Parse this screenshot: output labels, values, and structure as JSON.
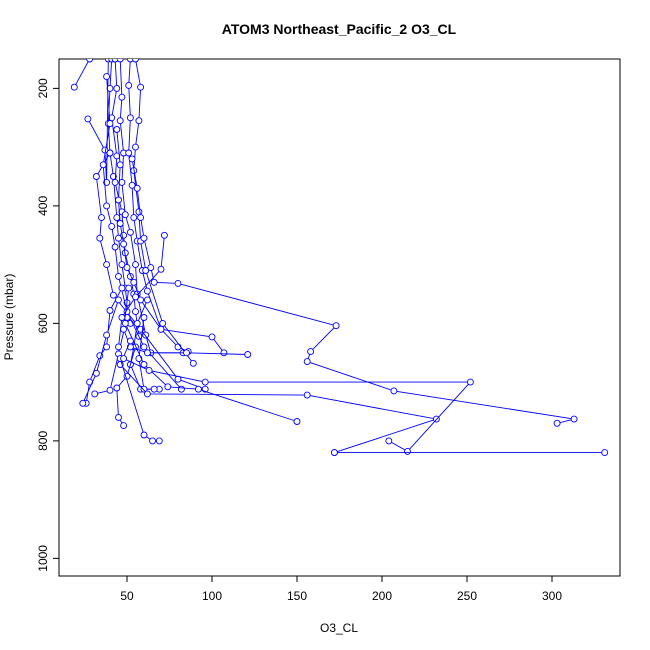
{
  "chart_data": {
    "type": "line",
    "title": "ATOM3 Northeast_Pacific_2 O3_CL",
    "xlabel": "O3_CL",
    "ylabel": "Pressure (mbar)",
    "xlim": [
      10,
      340
    ],
    "ylim": [
      1030,
      150
    ],
    "y_reversed": true,
    "xticks": [
      50,
      100,
      150,
      200,
      250,
      300
    ],
    "yticks": [
      200,
      400,
      600,
      800,
      1000
    ],
    "grid": false,
    "legend": "none",
    "colors": {
      "series": "#0000ff",
      "axis": "#000000",
      "background": "#ffffff"
    },
    "marker": "open-circle",
    "series": [
      {
        "points": [
          [
            19,
            198
          ],
          [
            28,
            150
          ]
        ]
      },
      {
        "points": [
          [
            27,
            252
          ],
          [
            37,
            305
          ],
          [
            38,
            360
          ],
          [
            39,
            150
          ]
        ]
      },
      {
        "points": [
          [
            41,
            150
          ],
          [
            40,
            200
          ],
          [
            39,
            260
          ],
          [
            40,
            310
          ],
          [
            42,
            350
          ],
          [
            44,
            420
          ],
          [
            45,
            455
          ],
          [
            47,
            500
          ],
          [
            49,
            540
          ],
          [
            50,
            565
          ],
          [
            52,
            600
          ]
        ]
      },
      {
        "points": [
          [
            43,
            150
          ],
          [
            44,
            200
          ],
          [
            41,
            250
          ],
          [
            44,
            315
          ],
          [
            43,
            360
          ],
          [
            47,
            410
          ],
          [
            48,
            450
          ],
          [
            49,
            480
          ],
          [
            52,
            520
          ],
          [
            54,
            550
          ],
          [
            55,
            580
          ],
          [
            57,
            622
          ]
        ]
      },
      {
        "points": [
          [
            46,
            150
          ],
          [
            47,
            215
          ],
          [
            46,
            255
          ],
          [
            48,
            310
          ],
          [
            47,
            360
          ],
          [
            49,
            415
          ],
          [
            52,
            445
          ],
          [
            55,
            500
          ],
          [
            56,
            550
          ],
          [
            61,
            620
          ],
          [
            64,
            650
          ],
          [
            83,
            650
          ]
        ]
      },
      {
        "points": [
          [
            52,
            150
          ],
          [
            51,
            195
          ],
          [
            52,
            250
          ],
          [
            51,
            310
          ],
          [
            53,
            365
          ],
          [
            54,
            420
          ],
          [
            56,
            460
          ],
          [
            59,
            510
          ],
          [
            62,
            545
          ],
          [
            70,
            610
          ],
          [
            80,
            640
          ],
          [
            86,
            648
          ]
        ]
      },
      {
        "points": [
          [
            55,
            150
          ],
          [
            58,
            198
          ],
          [
            57,
            255
          ],
          [
            55,
            300
          ],
          [
            54,
            340
          ],
          [
            57,
            410
          ],
          [
            58,
            460
          ],
          [
            61,
            510
          ],
          [
            71,
            600
          ],
          [
            89,
            668
          ]
        ]
      },
      {
        "points": [
          [
            40,
            310
          ],
          [
            32,
            350
          ],
          [
            35,
            420
          ],
          [
            34,
            455
          ],
          [
            38,
            500
          ],
          [
            42,
            552
          ],
          [
            58,
            610
          ],
          [
            80,
            695
          ],
          [
            96,
            712
          ]
        ]
      },
      {
        "points": [
          [
            38,
            180
          ],
          [
            40,
            260
          ],
          [
            36,
            330
          ],
          [
            38,
            400
          ],
          [
            41,
            435
          ],
          [
            43,
            470
          ],
          [
            45,
            520
          ],
          [
            50,
            580
          ],
          [
            60,
            640
          ],
          [
            82,
            712
          ]
        ]
      },
      {
        "points": [
          [
            44,
            270
          ],
          [
            46,
            330
          ],
          [
            45,
            390
          ],
          [
            46,
            430
          ],
          [
            48,
            465
          ],
          [
            50,
            505
          ],
          [
            54,
            530
          ],
          [
            58,
            560
          ],
          [
            70,
            610
          ],
          [
            100,
            623
          ],
          [
            107,
            650
          ]
        ]
      },
      {
        "points": [
          [
            53,
            320
          ],
          [
            56,
            370
          ],
          [
            58,
            420
          ],
          [
            60,
            455
          ],
          [
            64,
            505
          ],
          [
            66,
            530
          ],
          [
            80,
            532
          ],
          [
            173,
            604
          ],
          [
            158,
            648
          ],
          [
            156,
            665
          ],
          [
            207,
            715
          ],
          [
            313,
            763
          ],
          [
            303,
            770
          ]
        ]
      },
      {
        "points": [
          [
            47,
            540
          ],
          [
            40,
            578
          ],
          [
            38,
            640
          ],
          [
            34,
            655
          ],
          [
            28,
            700
          ],
          [
            26,
            736
          ]
        ]
      },
      {
        "points": [
          [
            45,
            560
          ],
          [
            38,
            620
          ],
          [
            32,
            685
          ],
          [
            24,
            736
          ]
        ]
      },
      {
        "points": [
          [
            50,
            590
          ],
          [
            45,
            652
          ],
          [
            40,
            714
          ],
          [
            31,
            720
          ]
        ]
      },
      {
        "points": [
          [
            62,
            560
          ],
          [
            56,
            600
          ],
          [
            54,
            640
          ],
          [
            52,
            670
          ],
          [
            58,
            712
          ],
          [
            69,
            712
          ]
        ]
      },
      {
        "points": [
          [
            60,
            590
          ],
          [
            57,
            660
          ],
          [
            60,
            712
          ],
          [
            66,
            712
          ]
        ]
      },
      {
        "points": [
          [
            55,
            640
          ],
          [
            50,
            690
          ],
          [
            44,
            710
          ],
          [
            45,
            760
          ],
          [
            48,
            774
          ]
        ]
      },
      {
        "points": [
          [
            72,
            450
          ],
          [
            70,
            508
          ],
          [
            55,
            555
          ],
          [
            47,
            590
          ],
          [
            45,
            640
          ]
        ]
      },
      {
        "points": [
          [
            51,
            540
          ],
          [
            48,
            610
          ],
          [
            52,
            640
          ],
          [
            62,
            650
          ],
          [
            85,
            650
          ],
          [
            121,
            653
          ]
        ]
      },
      {
        "points": [
          [
            49,
            600
          ],
          [
            60,
            670
          ],
          [
            74,
            708
          ],
          [
            92,
            712
          ],
          [
            150,
            767
          ]
        ]
      },
      {
        "points": [
          [
            52,
            630
          ],
          [
            46,
            670
          ],
          [
            62,
            720
          ],
          [
            156,
            722
          ],
          [
            232,
            763
          ],
          [
            172,
            820
          ]
        ]
      },
      {
        "points": [
          [
            46,
            660
          ],
          [
            60,
            790
          ],
          [
            65,
            800
          ],
          [
            69,
            800
          ]
        ]
      },
      {
        "points": [
          [
            48,
            660
          ],
          [
            63,
            680
          ],
          [
            96,
            700
          ],
          [
            252,
            700
          ],
          [
            215,
            818
          ],
          [
            204,
            800
          ]
        ]
      },
      {
        "points": [
          [
            172,
            820
          ],
          [
            331,
            820
          ]
        ]
      }
    ]
  }
}
